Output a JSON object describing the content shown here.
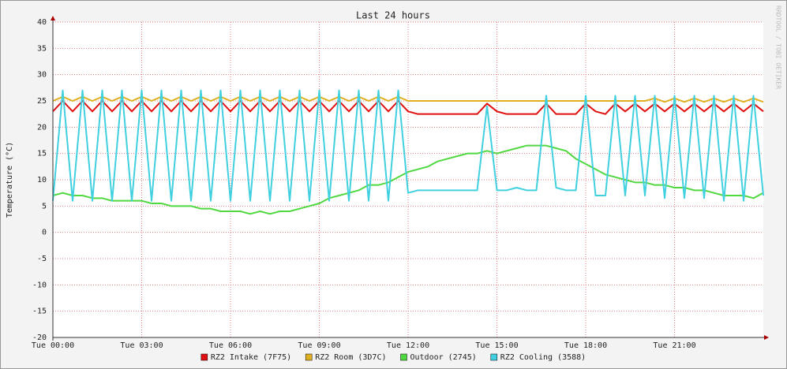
{
  "chart_data": {
    "type": "line",
    "title": "Last 24 hours",
    "y_label": "Temperature (°C)",
    "watermark": "RRDTOOL / TOBI OETIKER",
    "x": [
      0,
      20,
      40,
      60,
      80,
      100,
      120,
      140,
      160,
      180,
      200,
      220,
      240,
      260,
      280,
      300,
      320,
      340,
      360,
      380,
      400,
      420,
      440,
      460,
      480,
      500,
      520,
      540,
      560,
      580,
      600,
      620,
      640,
      660,
      680,
      700,
      720,
      740,
      760,
      780,
      800,
      820,
      840,
      860,
      880,
      900,
      920,
      940,
      960,
      980,
      1000,
      1020,
      1040,
      1060,
      1080,
      1100,
      1120,
      1140,
      1160,
      1180,
      1200,
      1220,
      1240,
      1260,
      1280,
      1300,
      1320,
      1340,
      1360,
      1380,
      1400,
      1420,
      1440
    ],
    "xlim": [
      0,
      1440
    ],
    "xticks": [
      {
        "value": 0,
        "label": "Tue 00:00"
      },
      {
        "value": 180,
        "label": "Tue 03:00"
      },
      {
        "value": 360,
        "label": "Tue 06:00"
      },
      {
        "value": 540,
        "label": "Tue 09:00"
      },
      {
        "value": 720,
        "label": "Tue 12:00"
      },
      {
        "value": 900,
        "label": "Tue 15:00"
      },
      {
        "value": 1080,
        "label": "Tue 18:00"
      },
      {
        "value": 1260,
        "label": "Tue 21:00"
      }
    ],
    "ylim": [
      -20,
      40
    ],
    "yticks": [
      -20,
      -15,
      -10,
      -5,
      0,
      5,
      10,
      15,
      20,
      25,
      30,
      35,
      40
    ],
    "grid": true,
    "series": [
      {
        "name": "RZ2 Intake (7F75)",
        "color": "#e01010",
        "values": [
          23,
          25,
          23,
          25,
          23,
          25,
          23,
          25,
          23,
          25,
          23,
          25,
          23,
          25,
          23,
          25,
          23,
          25,
          23,
          25,
          23,
          25,
          23,
          25,
          23,
          25,
          23,
          25,
          23,
          25,
          23,
          25,
          23,
          25,
          23,
          25,
          23,
          22.5,
          22.5,
          22.5,
          22.5,
          22.5,
          22.5,
          22.5,
          24.5,
          23,
          22.5,
          22.5,
          22.5,
          22.5,
          24.5,
          22.5,
          22.5,
          22.5,
          24.5,
          23,
          22.5,
          24.5,
          23,
          24.5,
          23,
          24.5,
          23,
          24.5,
          23,
          24.5,
          23,
          24.5,
          23,
          24.5,
          23,
          24.5,
          23
        ]
      },
      {
        "name": "RZ2 Room (3D7C)",
        "color": "#e0b020",
        "values": [
          25,
          25.8,
          25,
          25.8,
          25,
          25.8,
          25,
          25.8,
          25,
          25.8,
          25,
          25.8,
          25,
          25.8,
          25,
          25.8,
          25,
          25.8,
          25,
          25.8,
          25,
          25.8,
          25,
          25.8,
          25,
          25.8,
          25,
          25.8,
          25,
          25.8,
          25,
          25.8,
          25,
          25.8,
          25,
          25.8,
          25,
          25,
          25,
          25,
          25,
          25,
          25,
          25,
          25,
          25,
          25,
          25,
          25,
          25,
          25,
          25,
          25,
          25,
          25,
          25,
          25,
          25,
          25,
          25,
          25,
          25.5,
          24.8,
          25.5,
          24.8,
          25.5,
          24.8,
          25.5,
          24.8,
          25.5,
          24.8,
          25.5,
          24.8
        ]
      },
      {
        "name": "Outdoor (2745)",
        "color": "#50d840",
        "values": [
          7,
          7.5,
          7,
          7,
          6.5,
          6.5,
          6,
          6,
          6,
          6,
          5.5,
          5.5,
          5,
          5,
          5,
          4.5,
          4.5,
          4,
          4,
          4,
          3.5,
          4,
          3.5,
          4,
          4,
          4.5,
          5,
          5.5,
          6.5,
          7,
          7.5,
          8,
          9,
          9,
          9.5,
          10.5,
          11.5,
          12,
          12.5,
          13.5,
          14,
          14.5,
          15,
          15,
          15.5,
          15,
          15.5,
          16,
          16.5,
          16.5,
          16.5,
          16,
          15.5,
          14,
          13,
          12,
          11,
          10.5,
          10,
          9.5,
          9.5,
          9,
          9,
          8.5,
          8.5,
          8,
          8,
          7.5,
          7,
          7,
          7,
          6.5,
          7.5
        ]
      },
      {
        "name": "RZ2 Cooling (3588)",
        "color": "#40d0e0",
        "values": [
          6,
          27,
          6,
          27,
          6,
          27,
          6,
          27,
          6,
          27,
          6,
          27,
          6,
          27,
          6,
          27,
          6,
          27,
          6,
          27,
          6,
          27,
          6,
          27,
          6,
          27,
          6,
          27,
          6,
          27,
          6,
          27,
          6,
          27,
          6,
          27,
          7.5,
          8,
          8,
          8,
          8,
          8,
          8,
          8,
          24,
          8,
          8,
          8.5,
          8,
          8,
          26,
          8.5,
          8,
          8,
          26,
          7,
          7,
          26,
          7,
          26,
          7,
          26,
          6.5,
          26,
          6.5,
          26,
          6.5,
          26,
          6,
          26,
          6,
          26,
          7
        ]
      }
    ]
  }
}
